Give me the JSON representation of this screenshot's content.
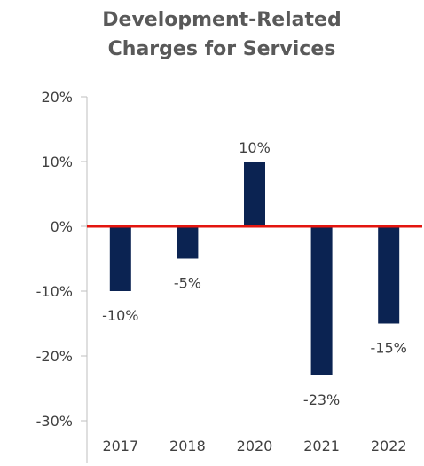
{
  "chart_data": {
    "type": "bar",
    "title_lines": [
      "Development-Related",
      "Charges for Services"
    ],
    "categories": [
      "2017",
      "2018",
      "2020",
      "2021",
      "2022"
    ],
    "values": [
      -10,
      -5,
      10,
      -23,
      -15
    ],
    "data_labels": [
      "-10%",
      "-5%",
      "10%",
      "-23%",
      "-15%"
    ],
    "ylim": [
      -30,
      20
    ],
    "yticks": [
      "20%",
      "10%",
      "0%",
      "-10%",
      "-20%",
      "-30%"
    ],
    "xlabel": "",
    "ylabel": "",
    "grid": false,
    "legend": "none",
    "colors": {
      "bar": "#0b2352",
      "zero_line": "#e3150f",
      "axis": "#bfbfbf",
      "text": "#404040",
      "title": "#595959"
    }
  }
}
